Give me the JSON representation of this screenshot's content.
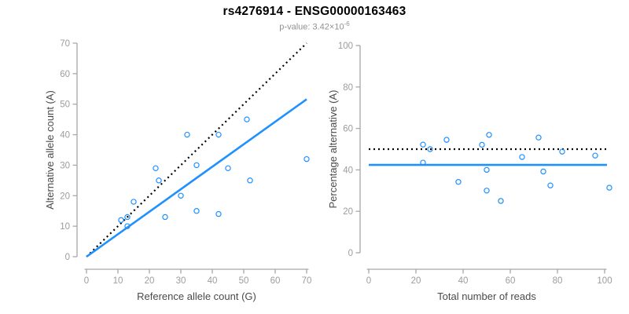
{
  "title": "rs4276914 - ENSG00000163463",
  "subtitle": {
    "base": "p-value: 3.42×10",
    "exponent": "-6"
  },
  "colors": {
    "accent_blue": "#1E90FF",
    "dotted_line": "#000000",
    "axis_line": "#A8A8A8",
    "tick_label": "#9C9C9C",
    "axis_title": "#4A4A4A",
    "title_color": "#000000",
    "subtitle_color": "#919191"
  },
  "chart_data": [
    {
      "type": "scatter",
      "name": "allele-counts-scatter",
      "xlabel": "Reference allele count (G)",
      "ylabel": "Alternative allele count (A)",
      "xlim": [
        0,
        70
      ],
      "ylim": [
        0,
        70
      ],
      "xticks": [
        0,
        10,
        20,
        30,
        40,
        50,
        60,
        70
      ],
      "yticks": [
        0,
        10,
        20,
        30,
        40,
        50,
        60,
        70
      ],
      "grid": false,
      "legend": "none",
      "points": [
        [
          11,
          12
        ],
        [
          13,
          13
        ],
        [
          13,
          10
        ],
        [
          15,
          18
        ],
        [
          22,
          29
        ],
        [
          23,
          25
        ],
        [
          25,
          13
        ],
        [
          30,
          20
        ],
        [
          32,
          40
        ],
        [
          35,
          30
        ],
        [
          35,
          15
        ],
        [
          42,
          40
        ],
        [
          42,
          14
        ],
        [
          45,
          29
        ],
        [
          51,
          45
        ],
        [
          52,
          25
        ],
        [
          70,
          32
        ]
      ],
      "lines": [
        {
          "name": "identity-line-dotted",
          "style": "dotted",
          "color": "#000000",
          "from": [
            0,
            0
          ],
          "to": [
            70,
            70
          ]
        },
        {
          "name": "fit-line-solid",
          "style": "solid",
          "color": "#1E90FF",
          "from": [
            0,
            0
          ],
          "to": [
            70,
            51.6
          ]
        }
      ]
    },
    {
      "type": "scatter",
      "name": "percentage-vs-reads-scatter",
      "xlabel": "Total number of reads",
      "ylabel": "Percentage alternative (A)",
      "xlim": [
        0,
        100
      ],
      "ylim": [
        0,
        100
      ],
      "xticks": [
        0,
        20,
        40,
        60,
        80,
        100
      ],
      "yticks": [
        0,
        20,
        40,
        60,
        80,
        100
      ],
      "grid": false,
      "legend": "none",
      "points": [
        [
          23,
          52.2
        ],
        [
          26,
          50
        ],
        [
          23,
          43.5
        ],
        [
          33,
          54.5
        ],
        [
          51,
          56.9
        ],
        [
          48,
          52.1
        ],
        [
          38,
          34.2
        ],
        [
          50,
          40
        ],
        [
          72,
          55.6
        ],
        [
          65,
          46.2
        ],
        [
          50,
          30
        ],
        [
          82,
          48.8
        ],
        [
          56,
          25
        ],
        [
          74,
          39.2
        ],
        [
          96,
          46.9
        ],
        [
          77,
          32.5
        ],
        [
          102,
          31.4
        ]
      ],
      "lines": [
        {
          "name": "fifty-percent-line-dotted",
          "style": "dotted",
          "color": "#000000",
          "from": [
            0,
            50
          ],
          "to": [
            101,
            50
          ]
        },
        {
          "name": "mean-percentage-line-solid",
          "style": "solid",
          "color": "#1E90FF",
          "from": [
            0,
            42.4
          ],
          "to": [
            101,
            42.4
          ]
        }
      ]
    }
  ]
}
